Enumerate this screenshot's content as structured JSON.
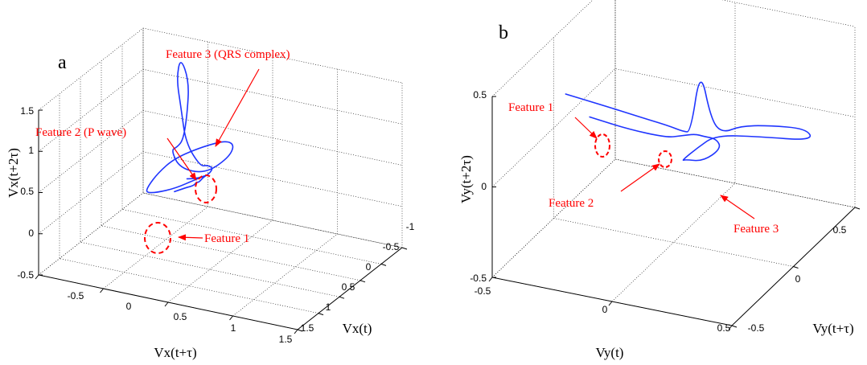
{
  "colors": {
    "curve": "#1f35ff",
    "annotation": "#ff0000",
    "axis": "#000000"
  },
  "chart_data": [
    {
      "type": "line",
      "panel": "a",
      "projection": "3d",
      "xlabel": "Vx(t)",
      "ylabel": "Vx(t+τ)",
      "zlabel": "Vx(t+2τ)",
      "xlim": [
        -1,
        1.5
      ],
      "ylim": [
        -0.5,
        1.5
      ],
      "zlim": [
        -0.5,
        1.5
      ],
      "xticks": [
        "-1",
        "-0.5",
        "0",
        "0.5",
        "1",
        "1.5"
      ],
      "yticks": [
        "-0.5",
        "0",
        "0.5",
        "1",
        "1.5"
      ],
      "zticks": [
        "-0.5",
        "0",
        "0.5",
        "1",
        "1.5"
      ],
      "grid": true,
      "series": [
        {
          "x": [
            -0.2,
            -0.15,
            -0.05,
            0.05,
            0.15,
            0.1,
            0.0,
            -0.1,
            -0.05,
            0.05,
            0.15,
            -0.05,
            -0.25,
            -0.5,
            -0.55,
            -0.35,
            -0.1,
            0.2,
            0.5,
            0.6,
            0.3,
            -0.1,
            -0.4,
            -0.5,
            -0.3,
            0.1,
            0.5,
            0.9,
            1.1,
            1.0,
            0.7,
            0.3,
            0.0,
            0.05,
            0.1,
            0.12
          ],
          "y": [
            0.0,
            0.1,
            0.2,
            0.25,
            0.3,
            0.32,
            0.34,
            0.33,
            0.3,
            0.28,
            0.2,
            0.1,
            0.0,
            -0.05,
            0.0,
            0.05,
            0.1,
            0.15,
            0.2,
            0.3,
            0.4,
            0.45,
            0.4,
            0.3,
            0.2,
            0.1,
            0.1,
            0.15,
            0.2,
            0.25,
            0.3,
            0.32,
            0.33,
            0.3,
            0.25,
            0.2
          ],
          "z": [
            0.0,
            0.1,
            0.2,
            0.3,
            0.35,
            0.4,
            0.42,
            0.44,
            0.48,
            0.5,
            0.8,
            1.1,
            1.35,
            1.5,
            1.2,
            0.9,
            0.7,
            0.75,
            0.85,
            0.7,
            0.55,
            0.6,
            0.62,
            0.6,
            0.58,
            0.56,
            0.54,
            0.55,
            0.57,
            0.55,
            0.5,
            0.45,
            0.4,
            0.38,
            0.36,
            0.35
          ]
        }
      ],
      "annotations": [
        {
          "text": "Feature 1"
        },
        {
          "text": "Feature 2 (P wave)"
        },
        {
          "text": "Feature 3 (QRS complex)"
        }
      ]
    },
    {
      "type": "line",
      "panel": "b",
      "projection": "3d",
      "xlabel": "Vy(t)",
      "ylabel": "Vy(t+τ)",
      "zlabel": "Vy(t+2τ)",
      "xlim": [
        -0.5,
        0.5
      ],
      "ylim": [
        -0.5,
        0.5
      ],
      "zlim": [
        -0.5,
        0.5
      ],
      "xticks": [
        "-0.5",
        "0",
        "0.5"
      ],
      "yticks": [
        "-0.5",
        "0",
        "0.5"
      ],
      "zticks": [
        "-0.5",
        "0",
        "0.5"
      ],
      "grid": true,
      "series": [
        {
          "x": [
            -0.45,
            -0.3,
            -0.15,
            -0.05,
            0.0,
            0.02,
            0.05,
            0.08,
            0.1,
            0.15,
            0.25,
            0.4,
            0.48,
            0.3,
            0.15,
            0.1,
            0.06,
            0.1,
            0.2,
            0.25,
            0.18,
            0.1,
            0.05,
            0.0,
            -0.05,
            -0.2,
            -0.35
          ],
          "y": [
            0.0,
            0.0,
            0.02,
            0.05,
            0.08,
            0.1,
            0.12,
            0.15,
            0.2,
            0.25,
            0.28,
            0.3,
            0.2,
            0.1,
            0.05,
            0.0,
            -0.05,
            -0.1,
            -0.15,
            -0.1,
            0.0,
            0.05,
            0.08,
            0.06,
            0.04,
            0.02,
            0.0
          ],
          "z": [
            0.2,
            0.18,
            0.14,
            0.1,
            0.06,
            0.05,
            0.4,
            0.1,
            0.0,
            0.02,
            0.03,
            0.04,
            0.06,
            0.1,
            0.1,
            0.05,
            0.0,
            0.05,
            0.1,
            0.15,
            0.12,
            0.08,
            0.06,
            0.05,
            0.04,
            0.06,
            0.1
          ]
        }
      ],
      "annotations": [
        {
          "text": "Feature 1"
        },
        {
          "text": "Feature 2"
        },
        {
          "text": "Feature 3"
        }
      ]
    }
  ]
}
